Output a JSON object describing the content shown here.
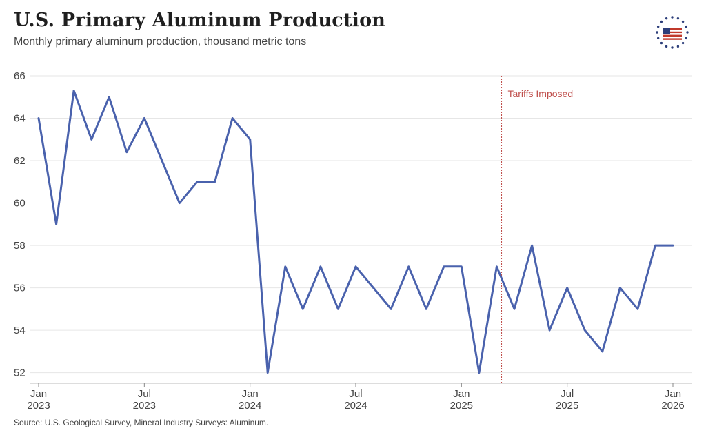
{
  "header": {
    "title": "U.S. Primary Aluminum Production",
    "subtitle": "Monthly primary aluminum production, thousand metric tons"
  },
  "footer": {
    "source": "Source: U.S. Geological Survey, Mineral Industry Surveys: Aluminum."
  },
  "logo": {
    "icon": "american-flag-stars-icon"
  },
  "colors": {
    "line": "#4a62ad",
    "annotation": "#c0504d",
    "grid": "#e6e6e6",
    "axis": "#444444"
  },
  "chart_data": {
    "type": "line",
    "title": "U.S. Primary Aluminum Production",
    "subtitle": "Monthly primary aluminum production, thousand metric tons",
    "xlabel": "",
    "ylabel": "",
    "ylim": [
      51.5,
      66
    ],
    "grid": true,
    "legend": "none",
    "x_start": "2023-01",
    "x_end": "2026-01",
    "yticks": [
      52,
      54,
      56,
      58,
      60,
      62,
      64,
      66
    ],
    "xticks": [
      {
        "month": "2023-01",
        "line1": "Jan",
        "line2": "2023"
      },
      {
        "month": "2023-07",
        "line1": "Jul",
        "line2": "2023"
      },
      {
        "month": "2024-01",
        "line1": "Jan",
        "line2": "2024"
      },
      {
        "month": "2024-07",
        "line1": "Jul",
        "line2": "2024"
      },
      {
        "month": "2025-01",
        "line1": "Jan",
        "line2": "2025"
      },
      {
        "month": "2025-07",
        "line1": "Jul",
        "line2": "2025"
      },
      {
        "month": "2026-01",
        "line1": "Jan",
        "line2": "2026"
      }
    ],
    "x": [
      "2023-01",
      "2023-02",
      "2023-03",
      "2023-04",
      "2023-05",
      "2023-06",
      "2023-07",
      "2023-08",
      "2023-09",
      "2023-10",
      "2023-11",
      "2023-12",
      "2024-01",
      "2024-02",
      "2024-03",
      "2024-04",
      "2024-05",
      "2024-06",
      "2024-07",
      "2024-08",
      "2024-09",
      "2024-10",
      "2024-11",
      "2024-12",
      "2025-01",
      "2025-02",
      "2025-03",
      "2025-04",
      "2025-05",
      "2025-06",
      "2025-07",
      "2025-08",
      "2025-09",
      "2025-10",
      "2025-11",
      "2025-12",
      "2026-01"
    ],
    "series": [
      {
        "name": "",
        "values": [
          64,
          59,
          65.3,
          63,
          65,
          62.4,
          64,
          62,
          60,
          61,
          61,
          64,
          63,
          52,
          57,
          55,
          57,
          55,
          57,
          56,
          55,
          57,
          55,
          57,
          57,
          52,
          57,
          55,
          58,
          54,
          56,
          54,
          53,
          56,
          55,
          58,
          58
        ]
      }
    ],
    "annotations": [
      {
        "type": "vline",
        "x": "2025-03",
        "label": "Tariffs Imposed"
      }
    ]
  }
}
